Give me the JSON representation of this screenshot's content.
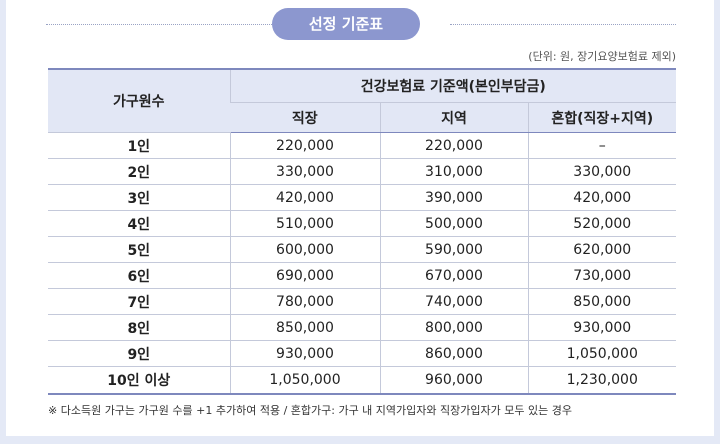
{
  "header": {
    "title": "선정 기준표",
    "unit_note": "(단위: 원, 장기요양보험료 제외)"
  },
  "table": {
    "household_header": "가구원수",
    "group_header": "건강보험료 기준액(본인부담금)",
    "columns": [
      "직장",
      "지역",
      "혼합(직장+지역)"
    ],
    "rows": [
      {
        "household": "1인",
        "workplace": "220,000",
        "regional": "220,000",
        "mixed": "–"
      },
      {
        "household": "2인",
        "workplace": "330,000",
        "regional": "310,000",
        "mixed": "330,000"
      },
      {
        "household": "3인",
        "workplace": "420,000",
        "regional": "390,000",
        "mixed": "420,000"
      },
      {
        "household": "4인",
        "workplace": "510,000",
        "regional": "500,000",
        "mixed": "520,000"
      },
      {
        "household": "5인",
        "workplace": "600,000",
        "regional": "590,000",
        "mixed": "620,000"
      },
      {
        "household": "6인",
        "workplace": "690,000",
        "regional": "670,000",
        "mixed": "730,000"
      },
      {
        "household": "7인",
        "workplace": "780,000",
        "regional": "740,000",
        "mixed": "850,000"
      },
      {
        "household": "8인",
        "workplace": "850,000",
        "regional": "800,000",
        "mixed": "930,000"
      },
      {
        "household": "9인",
        "workplace": "930,000",
        "regional": "860,000",
        "mixed": "1,050,000"
      },
      {
        "household": "10인 이상",
        "workplace": "1,050,000",
        "regional": "960,000",
        "mixed": "1,230,000"
      }
    ]
  },
  "footnote": "※ 다소득원 가구는 가구원 수를 +1 추가하여 적용 / 혼합가구: 가구 내 지역가입자와 직장가입자가 모두 있는 경우",
  "colors": {
    "accent": "#8c97cf",
    "header_bg": "#e2e7f5",
    "page_bg": "#e4e9f6"
  }
}
